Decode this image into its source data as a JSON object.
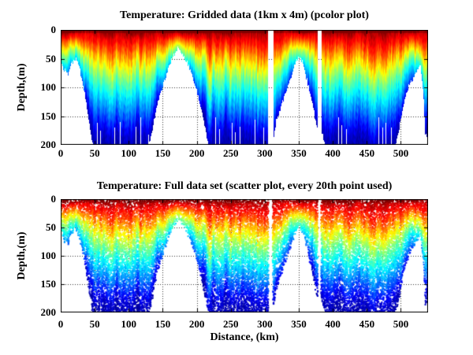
{
  "figure": {
    "background": "#ffffff",
    "text_color": "#000000",
    "frame_color": "#000000",
    "grid_style": "dotted"
  },
  "chart_data": [
    {
      "type": "heatmap",
      "title": "Temperature: Gridded data (1km x 4m) (pcolor plot)",
      "xlabel": "",
      "ylabel": "Depth,(m)",
      "xlim": [
        0,
        540
      ],
      "ylim": [
        200,
        0
      ],
      "xticks": [
        0,
        50,
        100,
        150,
        200,
        250,
        300,
        350,
        400,
        450,
        500
      ],
      "yticks": [
        0,
        50,
        100,
        150,
        200
      ],
      "grid": "dotted",
      "legend": "none",
      "colormap": "jet",
      "value": "temperature: warm (dark red) at surface grading to cold (dark blue) near 200 m; white = no data / below seafloor",
      "cell_size": "1 km x 4 m",
      "data_gaps_km": [
        [
          304.5,
          312.5
        ],
        [
          377.5,
          383
        ]
      ]
    },
    {
      "type": "scatter",
      "title": "Temperature: Full data set (scatter plot, every 20th point used)",
      "xlabel": "Distance, (km)",
      "ylabel": "Depth,(m)",
      "xlim": [
        0,
        540
      ],
      "ylim": [
        200,
        0
      ],
      "xticks": [
        0,
        50,
        100,
        150,
        200,
        250,
        300,
        350,
        400,
        450,
        500
      ],
      "yticks": [
        0,
        50,
        100,
        150,
        200
      ],
      "grid": "dotted",
      "legend": "none",
      "colormap": "jet",
      "value": "same temperature section drawn as colored points (every 20th point of full data set)",
      "marker_px": 2,
      "data_gaps_km": [
        [
          305.5,
          311.5
        ],
        [
          378,
          382.5
        ]
      ]
    }
  ],
  "shared_field": {
    "description": "ocean temperature transect; seafloor profile masks data (white below)",
    "bathymetry_km_depth_m": [
      [
        0,
        52
      ],
      [
        5,
        70
      ],
      [
        11,
        76
      ],
      [
        17,
        56
      ],
      [
        23,
        52
      ],
      [
        28,
        68
      ],
      [
        33,
        95
      ],
      [
        38,
        130
      ],
      [
        43,
        170
      ],
      [
        47,
        195
      ],
      [
        50,
        206
      ],
      [
        128,
        206
      ],
      [
        134,
        180
      ],
      [
        140,
        140
      ],
      [
        147,
        108
      ],
      [
        154,
        82
      ],
      [
        160,
        62
      ],
      [
        166,
        45
      ],
      [
        171,
        32
      ],
      [
        176,
        36
      ],
      [
        182,
        48
      ],
      [
        188,
        62
      ],
      [
        194,
        82
      ],
      [
        200,
        106
      ],
      [
        206,
        136
      ],
      [
        212,
        168
      ],
      [
        216,
        192
      ],
      [
        219,
        206
      ],
      [
        302,
        206
      ],
      [
        313,
        186
      ],
      [
        317,
        158
      ],
      [
        323,
        138
      ],
      [
        330,
        112
      ],
      [
        337,
        88
      ],
      [
        343,
        66
      ],
      [
        349,
        48
      ],
      [
        352,
        46
      ],
      [
        357,
        62
      ],
      [
        362,
        88
      ],
      [
        368,
        114
      ],
      [
        372,
        140
      ],
      [
        376,
        166
      ],
      [
        380,
        172
      ],
      [
        384,
        178
      ],
      [
        388,
        196
      ],
      [
        391,
        206
      ],
      [
        489,
        206
      ],
      [
        495,
        188
      ],
      [
        501,
        150
      ],
      [
        507,
        115
      ],
      [
        513,
        94
      ],
      [
        519,
        82
      ],
      [
        525,
        70
      ],
      [
        529,
        63
      ],
      [
        533,
        108
      ],
      [
        536,
        180
      ],
      [
        540,
        188
      ]
    ],
    "no_data_spikes_km_top_m": [
      [
        54,
        162
      ],
      [
        58,
        176
      ],
      [
        79,
        170
      ],
      [
        88,
        160
      ],
      [
        111,
        168
      ],
      [
        118,
        152
      ],
      [
        124,
        166
      ],
      [
        129,
        182
      ],
      [
        228,
        152
      ],
      [
        233,
        172
      ],
      [
        252,
        162
      ],
      [
        257,
        178
      ],
      [
        264,
        168
      ],
      [
        286,
        156
      ],
      [
        298,
        170
      ],
      [
        409,
        152
      ],
      [
        413,
        166
      ],
      [
        420,
        172
      ],
      [
        468,
        152
      ],
      [
        473,
        170
      ],
      [
        478,
        162
      ],
      [
        486,
        170
      ]
    ],
    "temp_profile_depth_to_colorfrac": [
      [
        0,
        0.97
      ],
      [
        15,
        0.9
      ],
      [
        30,
        0.83
      ],
      [
        45,
        0.74
      ],
      [
        60,
        0.65
      ],
      [
        75,
        0.56
      ],
      [
        90,
        0.48
      ],
      [
        105,
        0.41
      ],
      [
        120,
        0.34
      ],
      [
        140,
        0.26
      ],
      [
        160,
        0.17
      ],
      [
        180,
        0.09
      ],
      [
        200,
        0.045
      ],
      [
        300,
        0.02
      ]
    ]
  }
}
